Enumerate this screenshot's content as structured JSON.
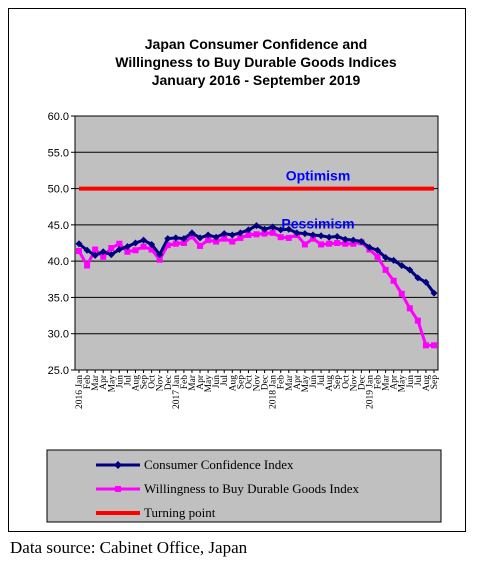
{
  "chart_data": {
    "type": "line",
    "title_lines": [
      "Japan Consumer Confidence and",
      "Willingness to Buy Durable Goods Indices",
      "January 2016 - September 2019"
    ],
    "ylim": [
      25.0,
      60.0
    ],
    "yticks": [
      "25.0",
      "30.0",
      "35.0",
      "40.0",
      "45.0",
      "50.0",
      "55.0",
      "60.0"
    ],
    "grid": true,
    "x_labels": [
      "2016 Jan",
      "Feb",
      "Mar",
      "Apr",
      "May",
      "Jun",
      "Jul",
      "Aug",
      "Sep",
      "Oct",
      "Nov",
      "Dec",
      "2017 Jan",
      "Feb",
      "Mar",
      "Apr",
      "May",
      "Jun",
      "Jul",
      "Aug",
      "Sep",
      "Oct",
      "Nov",
      "Dec",
      "2018 Jan",
      "Feb",
      "Mar",
      "Apr",
      "May",
      "Jun",
      "Jul",
      "Aug",
      "Sep",
      "Oct",
      "Nov",
      "Dec",
      "2019 Jan",
      "Feb",
      "Mar",
      "Apr",
      "May",
      "Jun",
      "Jul",
      "Aug",
      "Sep"
    ],
    "annotations": [
      "Optimism",
      "Pessimism"
    ],
    "series": [
      {
        "name": "Consumer Confidence Index",
        "color": "#000080",
        "marker": "diamond",
        "values": [
          42.4,
          41.5,
          40.8,
          41.3,
          40.9,
          41.6,
          42.0,
          42.5,
          42.9,
          42.3,
          40.9,
          43.1,
          43.2,
          43.1,
          43.9,
          43.2,
          43.6,
          43.3,
          43.8,
          43.6,
          43.9,
          44.3,
          44.9,
          44.4,
          44.7,
          44.3,
          44.4,
          43.9,
          43.8,
          43.6,
          43.5,
          43.3,
          43.4,
          43.0,
          42.9,
          42.7,
          41.9,
          41.5,
          40.5,
          40.1,
          39.4,
          38.8,
          37.7,
          37.1,
          35.6
        ]
      },
      {
        "name": "Willingness to Buy Durable Goods Index",
        "color": "#ff00ff",
        "marker": "square",
        "values": [
          41.4,
          39.4,
          41.6,
          40.6,
          41.8,
          42.4,
          41.3,
          41.5,
          42.0,
          41.6,
          40.2,
          42.2,
          42.4,
          42.5,
          43.4,
          42.1,
          42.9,
          42.7,
          43.1,
          42.7,
          43.2,
          43.6,
          43.7,
          43.8,
          43.9,
          43.3,
          43.2,
          43.6,
          42.3,
          43.1,
          42.3,
          42.4,
          42.5,
          42.4,
          42.4,
          42.6,
          41.6,
          40.6,
          38.8,
          37.3,
          35.5,
          33.5,
          31.8,
          28.4,
          28.4
        ]
      },
      {
        "name": "Turning point",
        "color": "#ff0000",
        "marker": "none",
        "values": [
          50,
          50,
          50,
          50,
          50,
          50,
          50,
          50,
          50,
          50,
          50,
          50,
          50,
          50,
          50,
          50,
          50,
          50,
          50,
          50,
          50,
          50,
          50,
          50,
          50,
          50,
          50,
          50,
          50,
          50,
          50,
          50,
          50,
          50,
          50,
          50,
          50,
          50,
          50,
          50,
          50,
          50,
          50,
          50,
          50
        ]
      }
    ],
    "legend_position": "bottom"
  },
  "source_text": "Data source: Cabinet Office, Japan"
}
